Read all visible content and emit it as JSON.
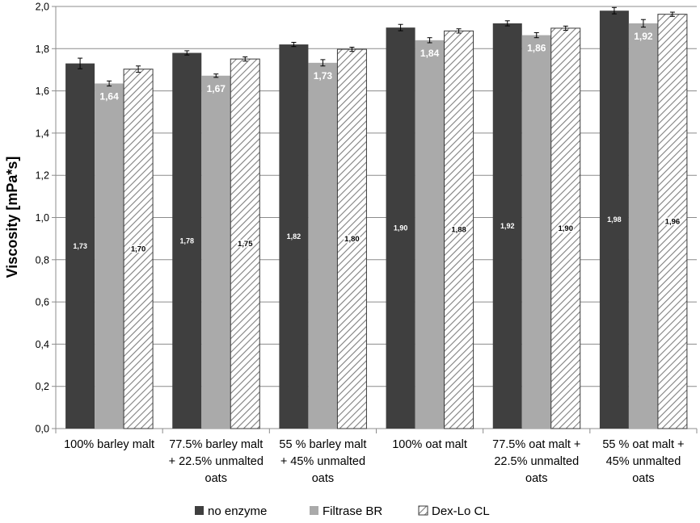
{
  "chart_data": {
    "type": "bar",
    "ylabel": "Viscosity [mPa*s]",
    "xlabel": "",
    "ylim": [
      0,
      2.0
    ],
    "yticks": [
      "0,0",
      "0,2",
      "0,4",
      "0,6",
      "0,8",
      "1,0",
      "1,2",
      "1,4",
      "1,6",
      "1,8",
      "2,0"
    ],
    "grid": true,
    "legend_position": "bottom",
    "categories": [
      [
        "100% barley malt"
      ],
      [
        "77.5% barley malt",
        "+ 22.5% unmalted",
        "oats"
      ],
      [
        "55 % barley malt",
        "+ 45% unmalted",
        "oats"
      ],
      [
        "100% oat malt"
      ],
      [
        "77.5% oat malt +",
        "22.5% unmalted",
        "oats"
      ],
      [
        "55 % oat malt +",
        "45% unmalted",
        "oats"
      ]
    ],
    "series": [
      {
        "name": "no enzyme",
        "color": "#3f3f3f",
        "pattern": "solid",
        "values": [
          1.73,
          1.78,
          1.82,
          1.9,
          1.92,
          1.98
        ],
        "errors": [
          0.025,
          0.01,
          0.01,
          0.015,
          0.012,
          0.015
        ],
        "labels": [
          "1,73",
          "1,78",
          "1,82",
          "1,90",
          "1,92",
          "1,98"
        ],
        "label_position": "middle"
      },
      {
        "name": "Filtrase BR",
        "color": "#aaaaaa",
        "pattern": "solid",
        "values": [
          1.635,
          1.672,
          1.733,
          1.84,
          1.864,
          1.92
        ],
        "errors": [
          0.012,
          0.008,
          0.015,
          0.012,
          0.012,
          0.018
        ],
        "labels": [
          "1,64",
          "1,67",
          "1,73",
          "1,84",
          "1,86",
          "1,92"
        ],
        "label_position": "top"
      },
      {
        "name": "Dex-Lo CL",
        "color": "#7f7f7f",
        "pattern": "hatch",
        "values": [
          1.703,
          1.751,
          1.797,
          1.884,
          1.897,
          1.963
        ],
        "errors": [
          0.015,
          0.01,
          0.01,
          0.01,
          0.01,
          0.01
        ],
        "labels": [
          "1,70",
          "1,75",
          "1,80",
          "1,88",
          "1,90",
          "1,96"
        ],
        "label_position": "middle"
      }
    ]
  }
}
